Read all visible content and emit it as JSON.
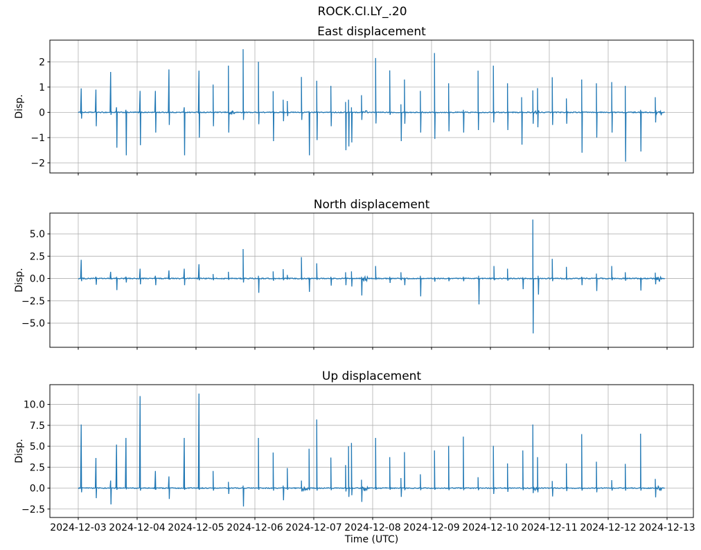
{
  "figure": {
    "title": "ROCK.CI.LY_.20",
    "xlabel": "Time (UTC)",
    "line_color": "#1f77b4",
    "grid_color": "#b0b0b0",
    "spine_color": "#000000",
    "background": "#ffffff"
  },
  "x_axis": {
    "tick_labels": [
      "2024-12-03",
      "2024-12-04",
      "2024-12-05",
      "2024-12-06",
      "2024-12-07",
      "2024-12-08",
      "2024-12-09",
      "2024-12-10",
      "2024-12-11",
      "2024-12-12",
      "2024-12-13"
    ],
    "tick_days": [
      0,
      1,
      2,
      3,
      4,
      5,
      6,
      7,
      8,
      9,
      10
    ],
    "xlim": [
      -0.482,
      10.447
    ],
    "data_start": 0.0,
    "data_end": 9.96
  },
  "chart_data": [
    {
      "type": "line",
      "title": "East displacement",
      "ylabel": "Disp.",
      "ylim": [
        -2.4,
        2.86
      ],
      "ytick_values": [
        -2,
        -1,
        0,
        1,
        2
      ],
      "ytick_labels": [
        "−2",
        "−1",
        "0",
        "1",
        "2"
      ],
      "noise_amp": 0.018,
      "spikes": [
        [
          0.05,
          0.95,
          -0.25
        ],
        [
          0.3,
          0.9,
          -0.55
        ],
        [
          0.55,
          1.6,
          -0.1
        ],
        [
          0.65,
          0.2,
          -1.4
        ],
        [
          0.81,
          0.1,
          -1.7
        ],
        [
          1.05,
          0.85,
          -1.3
        ],
        [
          1.31,
          0.85,
          -0.8
        ],
        [
          1.54,
          1.7,
          -0.5
        ],
        [
          1.8,
          0.2,
          -1.7
        ],
        [
          2.05,
          1.65,
          -1.0
        ],
        [
          2.29,
          1.1,
          -0.55
        ],
        [
          2.55,
          1.85,
          -0.8,
          1
        ],
        [
          2.8,
          2.5,
          -0.3
        ],
        [
          3.06,
          2.0,
          -0.47
        ],
        [
          3.31,
          0.84,
          -1.14
        ],
        [
          3.48,
          0.5,
          -0.35
        ],
        [
          3.55,
          0.45,
          -0.15
        ],
        [
          3.79,
          1.4,
          -0.3
        ],
        [
          3.92,
          0.05,
          -1.7
        ],
        [
          4.05,
          1.25,
          -1.1
        ],
        [
          4.29,
          1.05,
          -0.55
        ],
        [
          4.54,
          0.41,
          -1.5
        ],
        [
          4.59,
          0.5,
          -1.35
        ],
        [
          4.64,
          0.2,
          -1.19
        ],
        [
          4.81,
          0.68,
          -0.3,
          1
        ],
        [
          5.05,
          2.15,
          -0.44
        ],
        [
          5.29,
          1.66,
          -0.1
        ],
        [
          5.48,
          0.32,
          -1.14
        ],
        [
          5.54,
          1.3,
          -0.45
        ],
        [
          5.81,
          0.85,
          -0.8
        ],
        [
          6.05,
          2.35,
          -1.05
        ],
        [
          6.29,
          1.15,
          -0.75
        ],
        [
          6.54,
          0.1,
          -0.8
        ],
        [
          6.79,
          1.65,
          -0.7
        ],
        [
          7.05,
          1.85,
          -0.4
        ],
        [
          7.29,
          1.15,
          -0.7
        ],
        [
          7.53,
          0.6,
          -1.28
        ],
        [
          7.72,
          0.87,
          -0.45,
          1
        ],
        [
          7.8,
          0.96,
          -0.59
        ],
        [
          8.05,
          1.39,
          -0.5
        ],
        [
          8.29,
          0.55,
          -0.45
        ],
        [
          8.55,
          1.3,
          -1.6
        ],
        [
          8.8,
          1.15,
          -1.0
        ],
        [
          9.06,
          1.2,
          -0.8
        ],
        [
          9.29,
          1.05,
          -1.95
        ],
        [
          9.55,
          0.1,
          -1.55
        ],
        [
          9.8,
          0.6,
          -0.4,
          1
        ]
      ]
    },
    {
      "type": "line",
      "title": "North displacement",
      "ylabel": "Disp.",
      "ylim": [
        -7.71,
        7.33
      ],
      "ytick_values": [
        -5.0,
        -2.5,
        0.0,
        2.5,
        5.0
      ],
      "ytick_labels": [
        "−5.0",
        "−2.5",
        "0.0",
        "2.5",
        "5.0"
      ],
      "noise_amp": 0.055,
      "spikes": [
        [
          0.05,
          2.1,
          -0.3
        ],
        [
          0.3,
          0.2,
          -0.7
        ],
        [
          0.55,
          0.75,
          -0.1
        ],
        [
          0.65,
          0.1,
          -1.3
        ],
        [
          0.81,
          0.2,
          -0.45
        ],
        [
          1.05,
          1.1,
          -0.65
        ],
        [
          1.31,
          0.3,
          -0.75
        ],
        [
          1.54,
          0.9,
          -0.1
        ],
        [
          1.8,
          1.1,
          -0.75
        ],
        [
          2.05,
          1.6,
          -0.2
        ],
        [
          2.29,
          0.5,
          -0.2
        ],
        [
          2.55,
          0.75,
          -0.15
        ],
        [
          2.8,
          3.3,
          -0.45
        ],
        [
          3.06,
          0.3,
          -1.6
        ],
        [
          3.31,
          0.8,
          -0.25
        ],
        [
          3.48,
          1.05,
          -0.2
        ],
        [
          3.55,
          0.4,
          -0.1
        ],
        [
          3.79,
          2.4,
          -0.15
        ],
        [
          3.92,
          0.1,
          -1.5
        ],
        [
          4.05,
          1.7,
          -0.15
        ],
        [
          4.29,
          0.2,
          -0.8
        ],
        [
          4.54,
          0.7,
          -0.75
        ],
        [
          4.64,
          0.8,
          -0.9
        ],
        [
          4.81,
          0.2,
          -1.9,
          1
        ],
        [
          5.05,
          1.4,
          -0.15
        ],
        [
          5.29,
          0.2,
          -0.5
        ],
        [
          5.48,
          0.7,
          -0.2
        ],
        [
          5.54,
          0.1,
          -0.75
        ],
        [
          5.81,
          0.3,
          -2.0
        ],
        [
          6.05,
          0.15,
          -0.35
        ],
        [
          6.29,
          0.1,
          -0.3
        ],
        [
          6.54,
          0.2,
          -0.3
        ],
        [
          6.8,
          0.3,
          -2.9
        ],
        [
          7.06,
          1.4,
          -0.2
        ],
        [
          7.29,
          1.1,
          -0.25
        ],
        [
          7.55,
          0.15,
          -1.2
        ],
        [
          7.72,
          6.6,
          -6.15
        ],
        [
          7.81,
          0.3,
          -1.8
        ],
        [
          8.05,
          2.2,
          -0.3
        ],
        [
          8.29,
          1.3,
          -0.15
        ],
        [
          8.55,
          0.2,
          -0.75
        ],
        [
          8.8,
          0.55,
          -1.4
        ],
        [
          9.06,
          1.4,
          -0.2
        ],
        [
          9.29,
          0.7,
          -0.25
        ],
        [
          9.55,
          0.1,
          -1.35
        ],
        [
          9.8,
          0.65,
          -0.65,
          1
        ]
      ]
    },
    {
      "type": "line",
      "title": "Up displacement",
      "ylabel": "Disp.",
      "ylim": [
        -3.51,
        12.36
      ],
      "ytick_values": [
        -2.5,
        0.0,
        2.5,
        5.0,
        7.5,
        10.0
      ],
      "ytick_labels": [
        "−2.5",
        "0.0",
        "2.5",
        "5.0",
        "7.5",
        "10.0"
      ],
      "noise_amp": 0.05,
      "spikes": [
        [
          0.05,
          7.6,
          -0.5
        ],
        [
          0.3,
          3.6,
          -1.2
        ],
        [
          0.55,
          0.9,
          -1.95
        ],
        [
          0.65,
          5.2,
          -0.2
        ],
        [
          0.81,
          6.0,
          -0.15
        ],
        [
          1.05,
          11.0,
          -0.3
        ],
        [
          1.31,
          2.05,
          -0.2
        ],
        [
          1.54,
          1.4,
          -1.3
        ],
        [
          1.8,
          6.0,
          -0.2
        ],
        [
          2.05,
          11.3,
          -0.2
        ],
        [
          2.29,
          2.05,
          -0.3
        ],
        [
          2.55,
          0.75,
          -0.7
        ],
        [
          2.8,
          0.3,
          -2.2
        ],
        [
          3.06,
          6.0,
          -0.2
        ],
        [
          3.31,
          4.25,
          -0.3
        ],
        [
          3.48,
          0.3,
          -1.45
        ],
        [
          3.55,
          2.4,
          -0.2
        ],
        [
          3.79,
          0.9,
          -0.4,
          1
        ],
        [
          3.92,
          4.7,
          -0.25
        ],
        [
          4.05,
          8.2,
          -0.3
        ],
        [
          4.29,
          3.65,
          -0.25
        ],
        [
          4.54,
          2.75,
          -0.4
        ],
        [
          4.59,
          5.0,
          -1.05
        ],
        [
          4.64,
          5.4,
          -0.85
        ],
        [
          4.81,
          1.0,
          -1.65,
          1
        ],
        [
          5.05,
          6.0,
          -0.2
        ],
        [
          5.29,
          3.7,
          -0.2
        ],
        [
          5.48,
          1.2,
          -1.05
        ],
        [
          5.54,
          4.3,
          -0.25
        ],
        [
          5.81,
          1.65,
          -0.25
        ],
        [
          6.05,
          4.5,
          -0.2
        ],
        [
          6.29,
          5.05,
          -0.25
        ],
        [
          6.54,
          6.15,
          -0.25
        ],
        [
          6.79,
          1.3,
          -0.25
        ],
        [
          7.05,
          5.05,
          -0.7
        ],
        [
          7.29,
          2.95,
          -0.45
        ],
        [
          7.55,
          4.5,
          -0.25
        ],
        [
          7.72,
          7.6,
          -0.6,
          1
        ],
        [
          7.8,
          3.7,
          -0.5
        ],
        [
          8.05,
          0.85,
          -1.0
        ],
        [
          8.29,
          2.95,
          -0.35
        ],
        [
          8.55,
          6.45,
          -0.3
        ],
        [
          8.8,
          3.15,
          -0.5
        ],
        [
          9.06,
          0.95,
          -0.3
        ],
        [
          9.29,
          2.9,
          -0.3
        ],
        [
          9.55,
          6.5,
          -0.3
        ],
        [
          9.8,
          1.1,
          -1.1,
          1
        ]
      ]
    }
  ]
}
